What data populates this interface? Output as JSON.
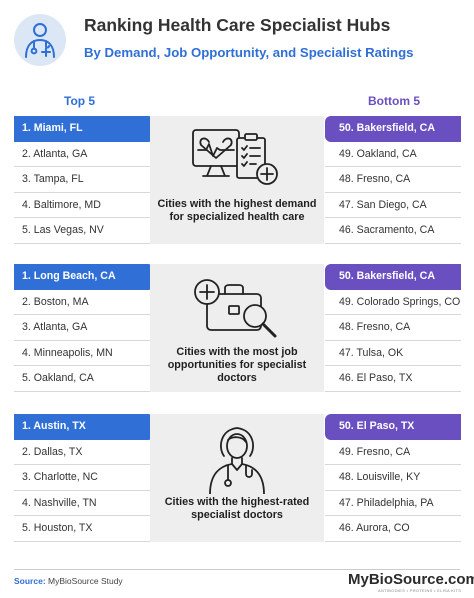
{
  "header": {
    "title": "Ranking Health Care Specialist Hubs",
    "subtitle": "By Demand, Job Opportunity, and Specialist Ratings",
    "logo_icon": "doctor-badge-icon"
  },
  "columns": {
    "left": "Top 5",
    "right": "Bottom 5"
  },
  "sections": [
    {
      "icon": "heart-monitor-clipboard-icon",
      "caption": "Cities with the highest demand for specialized health care",
      "top": [
        "1. Miami, FL",
        "2. Atlanta, GA",
        "3. Tampa, FL",
        "4. Baltimore, MD",
        "5. Las Vegas, NV"
      ],
      "bottom": [
        "50. Bakersfield, CA",
        "49. Oakland, CA",
        "48. Fresno, CA",
        "47. San Diego, CA",
        "46. Sacramento, CA"
      ]
    },
    {
      "icon": "medical-briefcase-search-icon",
      "caption": "Cities with the most job opportunities for specialist doctors",
      "top": [
        "1. Long Beach, CA",
        "2. Boston, MA",
        "3. Atlanta, GA",
        "4. Minneapolis, MN",
        "5. Oakland, CA"
      ],
      "bottom": [
        "50. Bakersfield, CA",
        "49. Colorado Springs, CO",
        "48. Fresno, CA",
        "47. Tulsa, OK",
        "46. El Paso, TX"
      ]
    },
    {
      "icon": "female-doctor-stethoscope-icon",
      "caption": "Cities with the highest-rated specialist doctors",
      "top": [
        "1. Austin, TX",
        "2. Dallas, TX",
        "3. Charlotte, NC",
        "4. Nashville, TN",
        "5. Houston, TX"
      ],
      "bottom": [
        "50. El Paso, TX",
        "49. Fresno, CA",
        "48. Louisville, KY",
        "47. Philadelphia, PA",
        "46. Aurora, CO"
      ]
    }
  ],
  "footer": {
    "source_label": "Source:",
    "source_text": "MyBioSource Study",
    "brand": "MyBioSource.com",
    "brand_tagline": "ANTIBODIES • PROTEINS • ELISA KITS"
  },
  "colors": {
    "blue": "#2f6fd6",
    "purple": "#6a4fc0",
    "panel": "#eeeeee"
  }
}
